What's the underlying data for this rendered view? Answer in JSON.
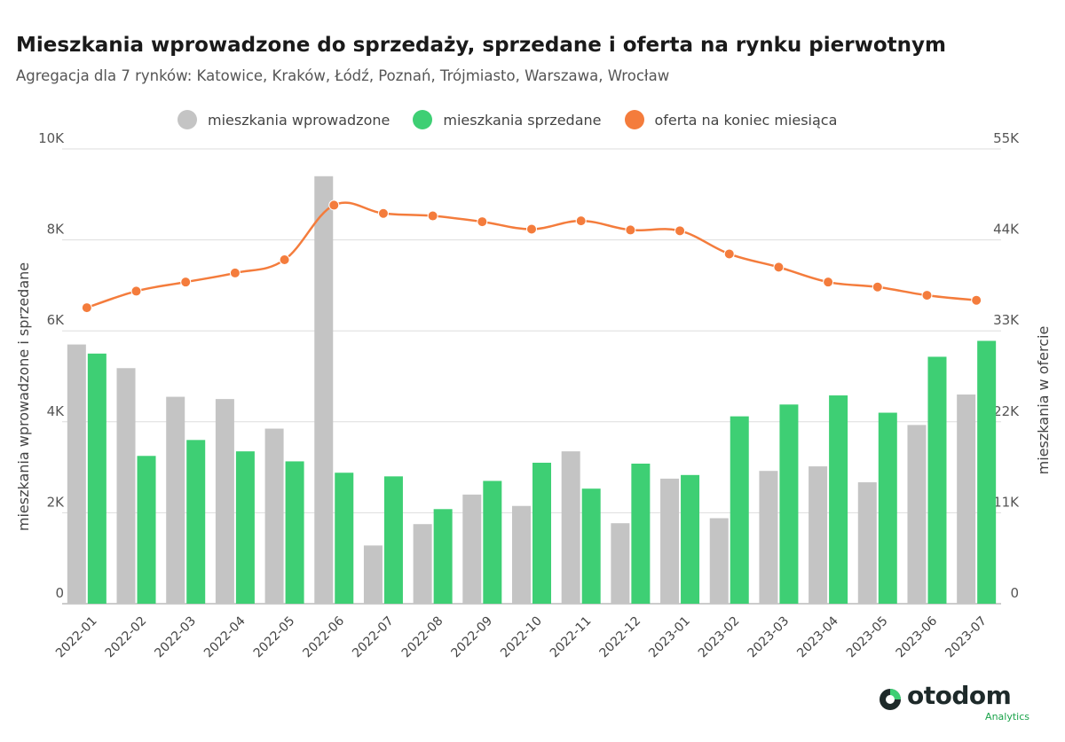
{
  "header": {
    "title": "Mieszkania wprowadzone do sprzedaży, sprzedane i oferta na rynku pierwotnym",
    "subtitle": "Agregacja dla 7 rynków: Katowice, Kraków, Łódź, Poznań, Trójmiasto, Warszawa, Wrocław"
  },
  "legend": [
    {
      "label": "mieszkania wprowadzone",
      "color": "#c4c4c4"
    },
    {
      "label": "mieszkania sprzedane",
      "color": "#3ecf74"
    },
    {
      "label": "oferta na koniec miesiąca",
      "color": "#f47c3c"
    }
  ],
  "chart_data": {
    "type": "bar+line",
    "categories": [
      "2022-01",
      "2022-02",
      "2022-03",
      "2022-04",
      "2022-05",
      "2022-06",
      "2022-07",
      "2022-08",
      "2022-09",
      "2022-10",
      "2022-11",
      "2022-12",
      "2023-01",
      "2023-02",
      "2023-03",
      "2023-04",
      "2023-05",
      "2023-06",
      "2023-07"
    ],
    "series": [
      {
        "name": "mieszkania wprowadzone",
        "type": "bar",
        "axis": "left",
        "color": "#c4c4c4",
        "values": [
          5700,
          5180,
          4550,
          4500,
          3850,
          9400,
          1280,
          1750,
          2400,
          2150,
          3350,
          1770,
          2750,
          1880,
          2920,
          3020,
          2670,
          3930,
          4600
        ]
      },
      {
        "name": "mieszkania sprzedane",
        "type": "bar",
        "axis": "left",
        "color": "#3ecf74",
        "values": [
          5500,
          3250,
          3600,
          3350,
          3130,
          2880,
          2800,
          2080,
          2700,
          3100,
          2530,
          3080,
          2830,
          4120,
          4380,
          4580,
          4200,
          5430,
          5780
        ]
      },
      {
        "name": "oferta na koniec miesiąca",
        "type": "line",
        "axis": "right",
        "color": "#f47c3c",
        "values": [
          35800,
          37800,
          38900,
          40000,
          41600,
          48200,
          47200,
          46900,
          46200,
          45300,
          46300,
          45200,
          45100,
          42300,
          40700,
          38900,
          38300,
          37300,
          36700
        ]
      }
    ],
    "yaxis_left": {
      "label": "mieszkania wprowadzone i sprzedane",
      "min": 0,
      "max": 10000,
      "ticks": [
        0,
        2000,
        4000,
        6000,
        8000,
        10000
      ],
      "tick_labels": [
        "0",
        "2K",
        "4K",
        "6K",
        "8K",
        "10K"
      ]
    },
    "yaxis_right": {
      "label": "mieszkania w ofercie",
      "min": 0,
      "max": 55000,
      "ticks": [
        0,
        11000,
        22000,
        33000,
        44000,
        55000
      ],
      "tick_labels": [
        "0",
        "11K",
        "22K",
        "33K",
        "44K",
        "55K"
      ]
    },
    "grid": true,
    "legend_position": "top"
  },
  "brand": {
    "name": "otodom",
    "sub": "Analytics"
  }
}
